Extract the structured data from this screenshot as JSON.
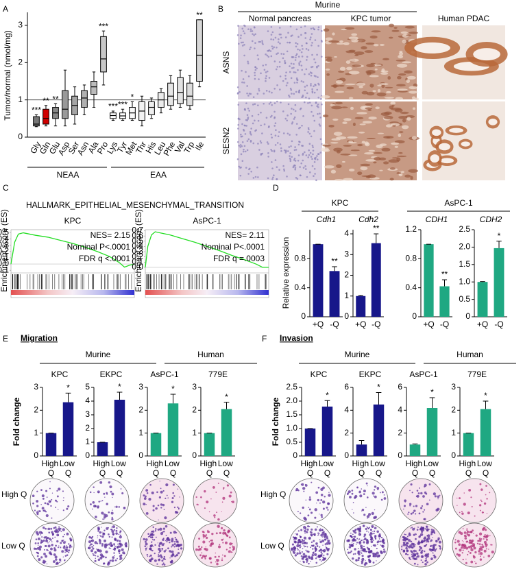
{
  "panels": [
    "A",
    "B",
    "C",
    "D",
    "E",
    "F"
  ],
  "panel_b": {
    "group": "Murine",
    "columns": [
      "Normal pancreas",
      "KPC tumor",
      "Human PDAC"
    ],
    "rows": [
      "ASNS",
      "SESN2"
    ]
  },
  "panel_c": {
    "title": "HALLMARK_EPITHELIAL_MESENCHYMAL_TRANSITION"
  },
  "panel_d": {
    "groups": [
      "KPC",
      "AsPC-1"
    ]
  },
  "panel_e": {
    "title": "Migration",
    "groups": [
      "Murine",
      "Human"
    ],
    "rows": [
      "High Q",
      "Low Q"
    ]
  },
  "panel_f": {
    "title": "Invasion",
    "groups": [
      "Murine",
      "Human"
    ],
    "rows": [
      "High Q",
      "Low Q"
    ]
  },
  "chart_data": [
    {
      "type": "box",
      "ylabel": "Tumor/normal (nmol/mg)",
      "categories": [
        "Gly",
        "Gln",
        "Glu",
        "Asp",
        "Ser",
        "Asn",
        "Ala",
        "Pro",
        "Lys",
        "Tyr",
        "Met",
        "Thr",
        "His",
        "Leu",
        "Phe",
        "Val",
        "Trp",
        "Ile"
      ],
      "values": [
        [
          0.28,
          0.3,
          0.35,
          0.55,
          0.6
        ],
        [
          0.3,
          0.35,
          0.5,
          0.75,
          0.85
        ],
        [
          0.3,
          0.5,
          0.65,
          0.8,
          0.9
        ],
        [
          0.3,
          0.5,
          0.75,
          1.25,
          1.8
        ],
        [
          0.35,
          0.6,
          0.85,
          1.1,
          1.35
        ],
        [
          0.6,
          0.8,
          1.05,
          1.25,
          1.4
        ],
        [
          0.8,
          1.15,
          1.35,
          1.5,
          1.75
        ],
        [
          1.4,
          1.75,
          2.1,
          2.7,
          2.85
        ],
        [
          0.45,
          0.5,
          0.58,
          0.65,
          0.7
        ],
        [
          0.45,
          0.5,
          0.57,
          0.65,
          0.75
        ],
        [
          0.45,
          0.5,
          0.65,
          0.8,
          0.95
        ],
        [
          0.3,
          0.45,
          0.7,
          0.95,
          1.1
        ],
        [
          0.5,
          0.6,
          0.8,
          0.95,
          1.05
        ],
        [
          0.65,
          0.8,
          1.0,
          1.2,
          1.3
        ],
        [
          0.75,
          0.85,
          1.1,
          1.45,
          1.65
        ],
        [
          0.8,
          0.9,
          1.2,
          1.6,
          1.8
        ],
        [
          0.75,
          0.85,
          1.1,
          1.45,
          1.65
        ],
        [
          1.35,
          1.5,
          2.2,
          3.15,
          3.15
        ]
      ],
      "annotations": [
        "***",
        "**",
        "**",
        null,
        null,
        null,
        null,
        "***",
        "***",
        "***",
        "*",
        null,
        null,
        null,
        null,
        null,
        null,
        "**"
      ],
      "colors": [
        "#777777",
        "#d00000",
        "#888888",
        "#999999",
        "#a5a5a5",
        "#b0b0b0",
        "#bbbbbb",
        "#c8c8c8",
        "#ffffff",
        "#ffffff",
        "#f8f8f8",
        "#f2f2f2",
        "#eeeeee",
        "#ebebeb",
        "#e6e6e6",
        "#e2e2e2",
        "#dddddd",
        "#d8d8d8"
      ],
      "groups": [
        "NEAA",
        "EAA"
      ],
      "hline": 1,
      "ylim": [
        0,
        3.35
      ],
      "yticks": [
        0,
        1,
        2,
        3
      ]
    },
    {
      "type": "gsea",
      "title": "KPC",
      "annotations": [
        "NES= 2.15",
        "Nominal P<.0001",
        "FDR q <.0001"
      ],
      "ylabel": "Enrichment score (ES)",
      "x": [
        0,
        0.03,
        0.06,
        0.1,
        0.2,
        0.3,
        0.4,
        0.5,
        0.6,
        0.7,
        0.8,
        0.88,
        0.92,
        0.96,
        1.0
      ],
      "y": [
        0,
        0.35,
        0.48,
        0.5,
        0.46,
        0.43,
        0.38,
        0.33,
        0.27,
        0.2,
        0.12,
        0.02,
        -0.05,
        -0.02,
        0
      ],
      "color": "#22dd22",
      "xlim": [
        0,
        1
      ],
      "ylim": [
        -0.12,
        0.55
      ],
      "yticks": [
        -0.1,
        {
          "value": 0,
          "label": "0.0"
        },
        0.1,
        0.2,
        0.3,
        0.4,
        0.5
      ]
    },
    {
      "type": "gsea",
      "title": "AsPC-1",
      "annotations": [
        "NES= 2.11",
        "Nominal P<.0001",
        "FDR q =.0003"
      ],
      "ylabel": "Enrichment score (ES)",
      "x": [
        0,
        0.02,
        0.05,
        0.08,
        0.12,
        0.2,
        0.3,
        0.4,
        0.5,
        0.6,
        0.7,
        0.8,
        0.9,
        0.95,
        1.0
      ],
      "y": [
        0,
        0.4,
        0.62,
        0.68,
        0.66,
        0.62,
        0.55,
        0.48,
        0.4,
        0.32,
        0.23,
        0.15,
        0.06,
        0.0,
        0.0
      ],
      "color": "#22dd22",
      "xlim": [
        0,
        1
      ],
      "ylim": [
        -0.08,
        0.72
      ],
      "yticks": [
        {
          "value": 0,
          "label": "0.0"
        },
        0.1,
        0.2,
        0.3,
        0.4,
        0.5,
        0.6,
        0.7
      ]
    },
    {
      "type": "bar",
      "ylabel": "Relative expression",
      "title": "Cdh1",
      "categories": [
        "+Q",
        "-Q"
      ],
      "category_colors": [
        "#000000",
        "#e00000"
      ],
      "values": [
        1,
        0.63
      ],
      "errors": [
        0,
        0.06
      ],
      "annotations": [
        null,
        "**"
      ],
      "color": "#17178a",
      "ylim": [
        0,
        1.2
      ],
      "yticks": [
        0,
        0.4,
        0.8
      ]
    },
    {
      "type": "bar",
      "title": "Cdh2",
      "categories": [
        "+Q",
        "-Q"
      ],
      "category_colors": [
        "#000000",
        "#e00000"
      ],
      "values": [
        1,
        3.55
      ],
      "errors": [
        0.03,
        0.45
      ],
      "annotations": [
        null,
        "**"
      ],
      "color": "#17178a",
      "ylim": [
        0,
        4.2
      ],
      "yticks": [
        0,
        1,
        2,
        3,
        4
      ]
    },
    {
      "type": "bar",
      "title": "CDH1",
      "categories": [
        "+Q",
        "-Q"
      ],
      "category_colors": [
        "#000000",
        "#e00000"
      ],
      "values": [
        1,
        0.42
      ],
      "errors": [
        0,
        0.09
      ],
      "annotations": [
        null,
        "**"
      ],
      "color": "#1fa882",
      "ylim": [
        0,
        1.2
      ],
      "yticks": [
        0,
        0.4,
        0.8,
        1.2
      ]
    },
    {
      "type": "bar",
      "title": "CDH2",
      "categories": [
        "+Q",
        "-Q"
      ],
      "category_colors": [
        "#000000",
        "#e00000"
      ],
      "values": [
        1,
        1.97
      ],
      "errors": [
        0.01,
        0.2
      ],
      "annotations": [
        null,
        "*"
      ],
      "color": "#1fa882",
      "ylim": [
        0,
        2.5
      ],
      "yticks": [
        0,
        0.5,
        {
          "value": 1,
          "label": "1.0"
        },
        1.5,
        {
          "value": 2,
          "label": "2.0"
        },
        2.5
      ]
    },
    {
      "type": "bar",
      "ylabel": "Fold change",
      "title": "KPC",
      "categories": [
        "High Q",
        "Low Q"
      ],
      "category_colors": [
        "#000000",
        "#e00000"
      ],
      "values": [
        1,
        2.35
      ],
      "errors": [
        0,
        0.4
      ],
      "annotations": [
        null,
        "*"
      ],
      "color": "#17178a",
      "ylim": [
        0,
        3
      ],
      "yticks": [
        0,
        1,
        2,
        3
      ]
    },
    {
      "type": "bar",
      "title": "EKPC",
      "categories": [
        "High Q",
        "Low Q"
      ],
      "category_colors": [
        "#000000",
        "#e00000"
      ],
      "values": [
        1,
        4.1
      ],
      "errors": [
        0,
        0.55
      ],
      "annotations": [
        null,
        "*"
      ],
      "color": "#17178a",
      "ylim": [
        0,
        5
      ],
      "yticks": [
        0,
        1,
        2,
        3,
        4,
        5
      ]
    },
    {
      "type": "bar",
      "title": "AsPC-1",
      "categories": [
        "High Q",
        "Low Q"
      ],
      "category_colors": [
        "#000000",
        "#e00000"
      ],
      "values": [
        1,
        2.3
      ],
      "errors": [
        0,
        0.4
      ],
      "annotations": [
        null,
        "*"
      ],
      "color": "#1fa882",
      "ylim": [
        0,
        3
      ],
      "yticks": [
        0,
        1,
        2,
        3
      ]
    },
    {
      "type": "bar",
      "title": "779E",
      "categories": [
        "High Q",
        "Low Q"
      ],
      "category_colors": [
        "#000000",
        "#e00000"
      ],
      "values": [
        1,
        2.05
      ],
      "errors": [
        0,
        0.3
      ],
      "annotations": [
        null,
        "*"
      ],
      "color": "#1fa882",
      "ylim": [
        0,
        3
      ],
      "yticks": [
        0,
        1,
        2,
        3
      ]
    },
    {
      "type": "bar",
      "ylabel": "Fold change",
      "title": "KPC",
      "categories": [
        "High Q",
        "Low Q"
      ],
      "category_colors": [
        "#000000",
        "#e00000"
      ],
      "values": [
        1,
        1.8
      ],
      "errors": [
        0,
        0.22
      ],
      "annotations": [
        null,
        "*"
      ],
      "color": "#17178a",
      "ylim": [
        0,
        2.5
      ],
      "yticks": [
        0,
        0.5,
        {
          "value": 1,
          "label": "1.0"
        },
        1.5,
        {
          "value": 2,
          "label": "2.0"
        },
        2.5
      ]
    },
    {
      "type": "bar",
      "title": "EKPC",
      "categories": [
        "High Q",
        "Low Q"
      ],
      "category_colors": [
        "#000000",
        "#e00000"
      ],
      "values": [
        1,
        4.5
      ],
      "errors": [
        0.35,
        1.05
      ],
      "annotations": [
        null,
        "*"
      ],
      "color": "#17178a",
      "ylim": [
        0,
        6
      ],
      "yticks": [
        0,
        2,
        4,
        6
      ]
    },
    {
      "type": "bar",
      "title": "AsPC-1",
      "categories": [
        "High Q",
        "Low Q"
      ],
      "category_colors": [
        "#000000",
        "#e00000"
      ],
      "values": [
        1,
        4.2
      ],
      "errors": [
        0.05,
        0.9
      ],
      "annotations": [
        null,
        "*"
      ],
      "color": "#1fa882",
      "ylim": [
        0,
        6
      ],
      "yticks": [
        0,
        2,
        4,
        6
      ]
    },
    {
      "type": "bar",
      "title": "779E",
      "categories": [
        "High Q",
        "Low Q"
      ],
      "category_colors": [
        "#000000",
        "#e00000"
      ],
      "values": [
        1,
        2.05
      ],
      "errors": [
        0,
        0.35
      ],
      "annotations": [
        null,
        "*"
      ],
      "color": "#1fa882",
      "ylim": [
        0,
        3
      ],
      "yticks": [
        0,
        1,
        2,
        3
      ]
    }
  ]
}
